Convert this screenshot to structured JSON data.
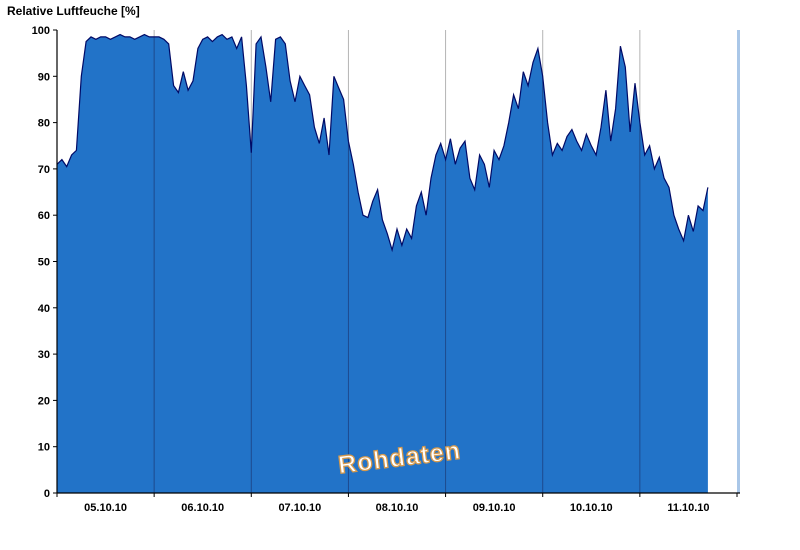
{
  "chart_data": {
    "type": "area",
    "title": "Relative Luftfeuche [%]",
    "watermark": "Rohdaten",
    "ylabel": "Relative Luftfeuche [%]",
    "xlabel": "",
    "ylim": [
      0,
      100
    ],
    "y_ticks": [
      0,
      10,
      20,
      30,
      40,
      50,
      60,
      70,
      80,
      90,
      100
    ],
    "x_tick_labels": [
      "05.10.10",
      "06.10.10",
      "07.10.10",
      "08.10.10",
      "09.10.10",
      "10.10.10",
      "11.10.10"
    ],
    "x_days_total": 7,
    "grid": "vertical-day-boundaries",
    "legend": "none",
    "series": [
      {
        "name": "Rohdaten",
        "unit": "%",
        "t_start_days": 0,
        "t_step_days": 0.05,
        "values": [
          71,
          72,
          70.5,
          73,
          74,
          90,
          97.5,
          98.5,
          98,
          98.5,
          98.5,
          98,
          98.5,
          99,
          98.5,
          98.5,
          98,
          98.5,
          99,
          98.5,
          98.5,
          98.5,
          98,
          97,
          88,
          86.5,
          91,
          87,
          89,
          96,
          98,
          98.5,
          97.5,
          98.5,
          99,
          98,
          98.5,
          96,
          98.5,
          88,
          73.5,
          97,
          98.5,
          92,
          84.5,
          98,
          98.5,
          97,
          89,
          84.5,
          90,
          88,
          86,
          79,
          75.5,
          81,
          73,
          90,
          87.5,
          85,
          76,
          71,
          65,
          60,
          59.5,
          63,
          65.5,
          59,
          56,
          52.5,
          57,
          53.5,
          57,
          55,
          62,
          65,
          60,
          68,
          73,
          75.5,
          72,
          76.5,
          71,
          74.5,
          76,
          68,
          65.5,
          73,
          71,
          66,
          74,
          72,
          75,
          80,
          86,
          83,
          91,
          88,
          93,
          96,
          90,
          80,
          73,
          75.5,
          74,
          77,
          78.5,
          76,
          74,
          77.5,
          75,
          73,
          79,
          87,
          76,
          83,
          96.5,
          92,
          78,
          88.5,
          80,
          73,
          75,
          70,
          72.5,
          68,
          66,
          60,
          57,
          54.5,
          60,
          56.5,
          62,
          61,
          66
        ]
      }
    ],
    "colors": {
      "fill": "#2273c8",
      "line": "#000a66",
      "grid_light": "#b4b4b4",
      "grid_dark": "#1b2f66",
      "axis": "#000000",
      "right_border": "#aac7e8",
      "watermark_fill": "#ffffff",
      "watermark_outline": "#d59a4e"
    }
  }
}
